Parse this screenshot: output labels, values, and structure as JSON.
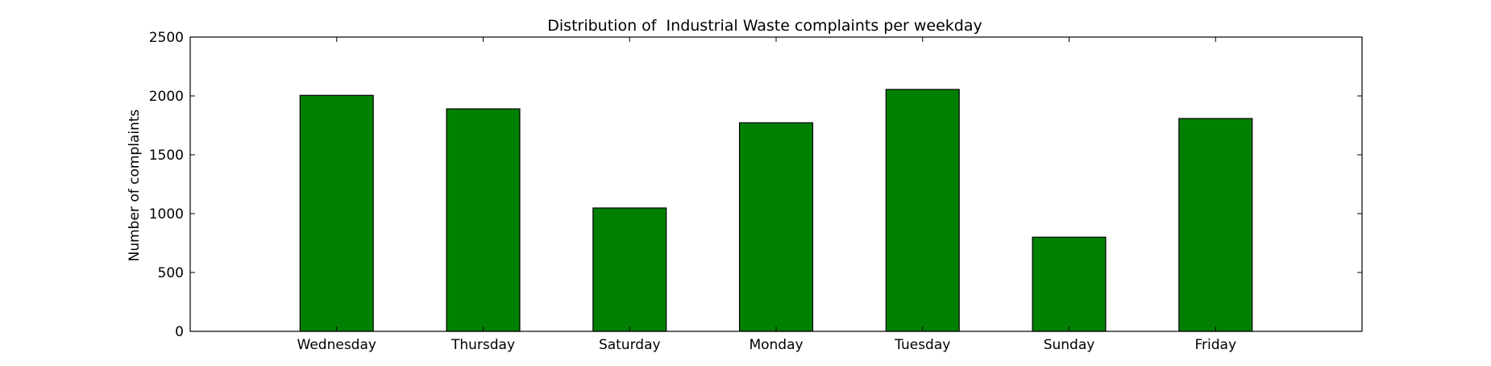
{
  "chart_data": {
    "type": "bar",
    "title": "Distribution of  Industrial Waste complaints per weekday",
    "xlabel": "",
    "ylabel": "Number of complaints",
    "categories": [
      "Wednesday",
      "Thursday",
      "Saturday",
      "Monday",
      "Tuesday",
      "Sunday",
      "Friday"
    ],
    "values": [
      2005,
      1890,
      1048,
      1772,
      2055,
      800,
      1808
    ],
    "ylim": [
      0,
      2500
    ],
    "yticks": [
      0,
      500,
      1000,
      1500,
      2000,
      2500
    ],
    "bar_color": "#008000",
    "edge_color": "#000000",
    "grid": false,
    "legend": "none"
  }
}
